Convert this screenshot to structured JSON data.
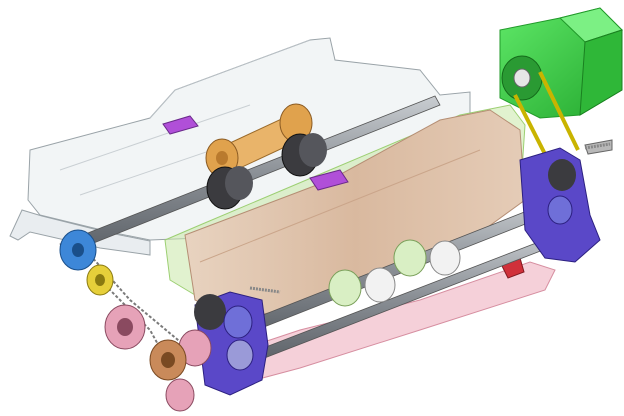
{
  "colors": {
    "background": "#ffffff",
    "frame_plate": "#eef1f3",
    "frame_edge": "#9aa3a8",
    "paper_sheet": "#dfc4ae",
    "paper_edge": "#b58e74",
    "motor": "#3fd24a",
    "motor_dark": "#219a2a",
    "belt": "#c9b400",
    "shaft": "#8a8f95",
    "roller_black": "#3b3b3f",
    "roller_orange": "#e0a24d",
    "roller_white": "#f2f2f2",
    "bracket_blue": "#5a48c8",
    "sensor_purple": "#b04fd8",
    "sensor_red": "#d0303a",
    "pulley_blue": "#3d87d8",
    "gear_tan": "#c98a5a",
    "pulley_pink": "#e6a2b8",
    "green_guide": "#c9e8a8",
    "pink_guide": "#f2c0cc"
  },
  "components": [
    "transparent-frame-plate",
    "paper-sheet",
    "stepper-motor",
    "drive-belt",
    "upper-roller-shaft",
    "lower-roller-shaft",
    "feed-rollers",
    "pinch-rollers",
    "side-brackets",
    "timing-pulleys",
    "paper-sensors",
    "tension-springs"
  ]
}
